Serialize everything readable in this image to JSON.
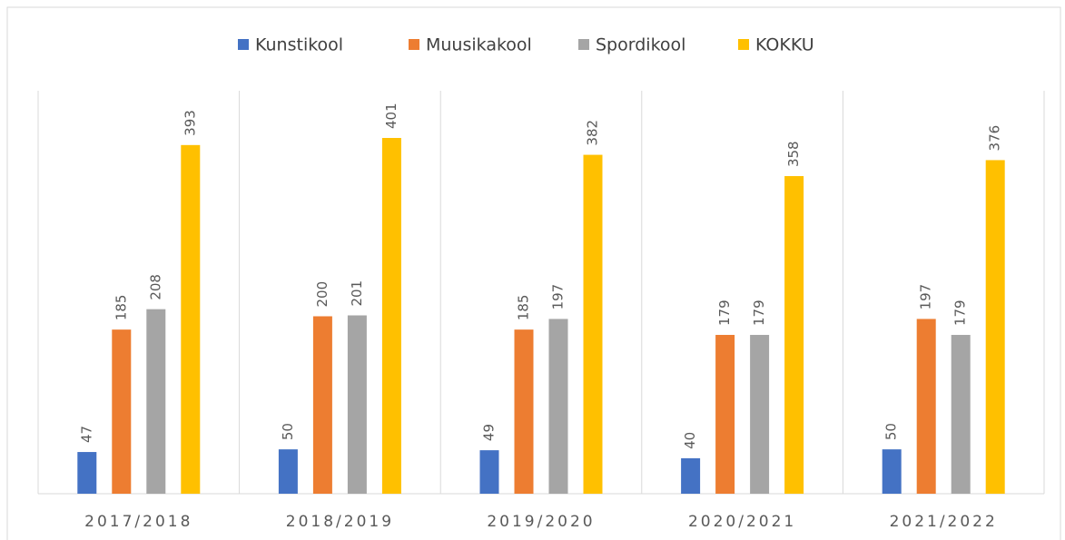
{
  "chart_data": {
    "type": "bar",
    "categories": [
      "2017/2018",
      "2018/2019",
      "2019/2020",
      "2020/2021",
      "2021/2022"
    ],
    "series": [
      {
        "name": "Kunstikool",
        "color": "#4472c4",
        "values": [
          47,
          50,
          49,
          40,
          50
        ]
      },
      {
        "name": "Muusikakool",
        "color": "#ed7d31",
        "values": [
          185,
          200,
          185,
          179,
          197
        ]
      },
      {
        "name": "Spordikool",
        "color": "#a5a5a5",
        "values": [
          208,
          201,
          197,
          179,
          179
        ]
      },
      {
        "name": "KOKKU",
        "color": "#ffc000",
        "values": [
          393,
          401,
          382,
          358,
          376
        ]
      }
    ],
    "legend": "top"
  }
}
